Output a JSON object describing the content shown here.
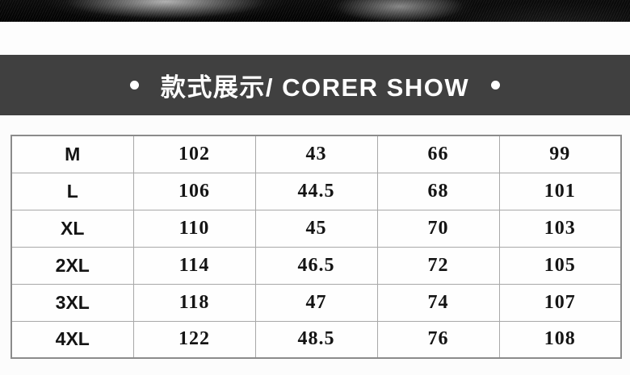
{
  "banner": {
    "title": "款式展示/ CORER SHOW",
    "bullet": "•"
  },
  "colors": {
    "banner_bg": "#404040",
    "banner_text": "#ffffff",
    "photo_bg": "#050505",
    "page_bg": "#fcfcfc",
    "table_outer_border": "#8b8b8b",
    "table_inner_border": "#a8a8a8",
    "table_text": "#141414"
  },
  "size_table": {
    "rows": [
      {
        "size": "M",
        "values": [
          "102",
          "43",
          "66",
          "99"
        ]
      },
      {
        "size": "L",
        "values": [
          "106",
          "44.5",
          "68",
          "101"
        ]
      },
      {
        "size": "XL",
        "values": [
          "110",
          "45",
          "70",
          "103"
        ]
      },
      {
        "size": "2XL",
        "values": [
          "114",
          "46.5",
          "72",
          "105"
        ]
      },
      {
        "size": "3XL",
        "values": [
          "118",
          "47",
          "74",
          "107"
        ]
      },
      {
        "size": "4XL",
        "values": [
          "122",
          "48.5",
          "76",
          "108"
        ]
      }
    ]
  }
}
